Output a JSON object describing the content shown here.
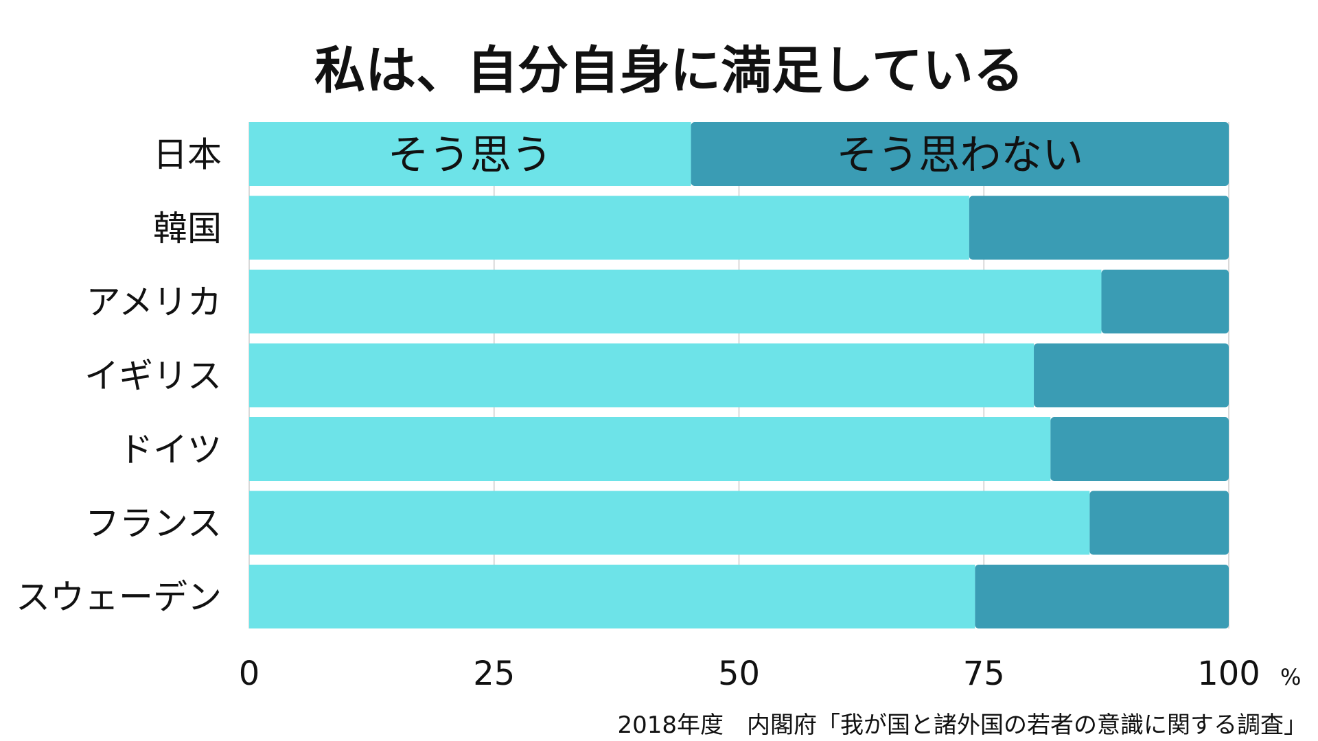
{
  "chart_data": {
    "type": "bar",
    "orientation": "horizontal",
    "stacked": true,
    "title": "私は、自分自身に満足している",
    "categories": [
      "日本",
      "韓国",
      "アメリカ",
      "イギリス",
      "ドイツ",
      "フランス",
      "スウェーデン"
    ],
    "series": [
      {
        "name": "そう思う",
        "color": "#6de3e8",
        "values": [
          45.1,
          73.5,
          87.0,
          80.1,
          81.8,
          85.8,
          74.1
        ]
      },
      {
        "name": "そう思わない",
        "color": "#3a9cb4",
        "values": [
          54.9,
          26.5,
          13.0,
          19.9,
          18.2,
          14.2,
          25.9
        ]
      }
    ],
    "x_ticks": [
      "0",
      "25",
      "50",
      "75",
      "100"
    ],
    "x_unit": "%",
    "xlim": [
      0,
      100
    ],
    "grid": true,
    "legend_placement": "inside first bar",
    "source": "2018年度　内閣府「我が国と諸外国の若者の意識に関する調査」"
  }
}
